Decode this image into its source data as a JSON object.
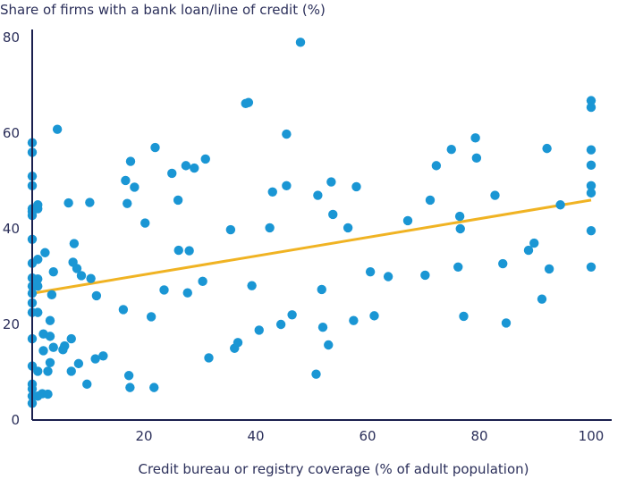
{
  "chart_data": {
    "type": "scatter",
    "title": "",
    "ylabel": "Share of firms with a bank loan/line of credit (%)",
    "xlabel": "Credit bureau or registry coverage (% of adult population)",
    "xlim": [
      0,
      100
    ],
    "ylim": [
      0,
      80
    ],
    "xticks": [
      "20",
      "40",
      "60",
      "80",
      "100"
    ],
    "yticks": [
      "0",
      "20",
      "40",
      "60",
      "80"
    ],
    "grid": false,
    "colors": {
      "points": "#1a96d4",
      "trend": "#f0b323",
      "axis": "#1a1f4e",
      "text": "#2b2f5a"
    },
    "trendline": {
      "x": [
        0,
        100
      ],
      "y": [
        26.5,
        46
      ]
    },
    "series": [
      {
        "points": [
          [
            0,
            3.5
          ],
          [
            0,
            5
          ],
          [
            0,
            6.5
          ],
          [
            0,
            7.5
          ],
          [
            0,
            11.3
          ],
          [
            0,
            17
          ],
          [
            0,
            22.5
          ],
          [
            0,
            24.5
          ],
          [
            0,
            26.5
          ],
          [
            0,
            28
          ],
          [
            0,
            29.7
          ],
          [
            0,
            32.8
          ],
          [
            0,
            37.8
          ],
          [
            0,
            42.8
          ],
          [
            0,
            43.6
          ],
          [
            0,
            44.2
          ],
          [
            0,
            49
          ],
          [
            0,
            51
          ],
          [
            0,
            56
          ],
          [
            0,
            58
          ],
          [
            1,
            5
          ],
          [
            1,
            10.2
          ],
          [
            1,
            22.5
          ],
          [
            1,
            28
          ],
          [
            1,
            29.5
          ],
          [
            1,
            33.6
          ],
          [
            1,
            44.2
          ],
          [
            1,
            45
          ],
          [
            1.8,
            5.5
          ],
          [
            2,
            14.5
          ],
          [
            2,
            18
          ],
          [
            2.3,
            35
          ],
          [
            2.8,
            5.4
          ],
          [
            2.8,
            10.2
          ],
          [
            3.2,
            20.8
          ],
          [
            3.2,
            12
          ],
          [
            3.2,
            17.5
          ],
          [
            3.5,
            26.2
          ],
          [
            3.8,
            15.2
          ],
          [
            3.8,
            31
          ],
          [
            4.5,
            60.8
          ],
          [
            5.5,
            14.7
          ],
          [
            5.8,
            15.5
          ],
          [
            6.5,
            45.4
          ],
          [
            7,
            10.2
          ],
          [
            7,
            17
          ],
          [
            7.3,
            33
          ],
          [
            7.5,
            36.9
          ],
          [
            8,
            31.7
          ],
          [
            8.3,
            11.8
          ],
          [
            8.8,
            30.2
          ],
          [
            9.8,
            7.5
          ],
          [
            10.3,
            45.5
          ],
          [
            10.5,
            29.6
          ],
          [
            11.3,
            12.8
          ],
          [
            11.5,
            26
          ],
          [
            12.7,
            13.4
          ],
          [
            16.3,
            23.1
          ],
          [
            16.7,
            50.1
          ],
          [
            17,
            45.3
          ],
          [
            17.3,
            9.3
          ],
          [
            17.5,
            6.8
          ],
          [
            17.6,
            54.1
          ],
          [
            18.3,
            48.7
          ],
          [
            20.2,
            41.2
          ],
          [
            21.3,
            21.6
          ],
          [
            21.8,
            6.8
          ],
          [
            22,
            57
          ],
          [
            23.6,
            27.2
          ],
          [
            25,
            51.6
          ],
          [
            26.1,
            46
          ],
          [
            26.2,
            35.5
          ],
          [
            27.5,
            53.2
          ],
          [
            27.8,
            26.6
          ],
          [
            28.1,
            35.4
          ],
          [
            29,
            52.7
          ],
          [
            30.5,
            29
          ],
          [
            31,
            54.6
          ],
          [
            31.6,
            13
          ],
          [
            35.5,
            39.8
          ],
          [
            36.2,
            15
          ],
          [
            36.8,
            16.2
          ],
          [
            38.2,
            66.2
          ],
          [
            38.7,
            66.4
          ],
          [
            39.3,
            28.1
          ],
          [
            40.6,
            18.8
          ],
          [
            42.5,
            40.2
          ],
          [
            43,
            47.7
          ],
          [
            44.5,
            20
          ],
          [
            45.5,
            49
          ],
          [
            45.5,
            59.8
          ],
          [
            46.5,
            22
          ],
          [
            48,
            79
          ],
          [
            50.8,
            9.6
          ],
          [
            51.1,
            47
          ],
          [
            51.8,
            27.3
          ],
          [
            52,
            19.4
          ],
          [
            53,
            15.7
          ],
          [
            53.5,
            49.8
          ],
          [
            53.8,
            43
          ],
          [
            56.5,
            40.2
          ],
          [
            57.5,
            20.8
          ],
          [
            58,
            48.8
          ],
          [
            60.5,
            31
          ],
          [
            61.2,
            21.8
          ],
          [
            63.7,
            30
          ],
          [
            67.2,
            41.7
          ],
          [
            70.3,
            30.3
          ],
          [
            71.2,
            46
          ],
          [
            72.3,
            53.2
          ],
          [
            75,
            56.6
          ],
          [
            76.2,
            32
          ],
          [
            76.5,
            42.6
          ],
          [
            76.6,
            40
          ],
          [
            77.2,
            21.7
          ],
          [
            79.3,
            59
          ],
          [
            79.5,
            54.8
          ],
          [
            82.8,
            47
          ],
          [
            84.2,
            32.7
          ],
          [
            84.8,
            20.3
          ],
          [
            88.8,
            35.5
          ],
          [
            89.8,
            37
          ],
          [
            91.2,
            25.3
          ],
          [
            92.1,
            56.8
          ],
          [
            92.5,
            31.6
          ],
          [
            94.5,
            45
          ],
          [
            100,
            32
          ],
          [
            100,
            39.6
          ],
          [
            100,
            47.5
          ],
          [
            100,
            49
          ],
          [
            100,
            53.3
          ],
          [
            100,
            56.5
          ],
          [
            100,
            65.4
          ],
          [
            100,
            66.8
          ]
        ]
      }
    ]
  }
}
